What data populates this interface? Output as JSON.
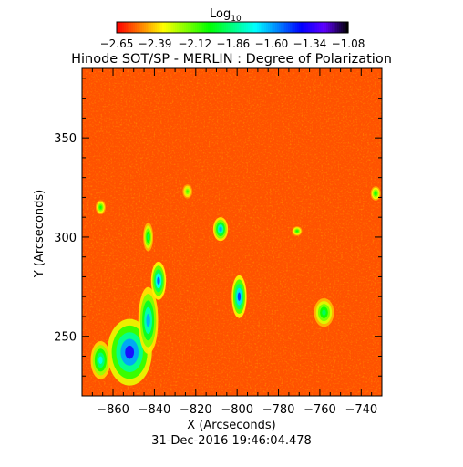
{
  "chart_data": {
    "type": "heatmap",
    "title": "Hinode SOT/SP - MERLIN : Degree of Polarization",
    "xlabel": "X (Arcseconds)",
    "ylabel": "Y (Arcseconds)",
    "timestamp": "31-Dec-2016 19:46:04.478",
    "xlim": [
      -875,
      -730
    ],
    "ylim": [
      220,
      385
    ],
    "x_ticks": [
      -860,
      -840,
      -820,
      -800,
      -780,
      -760,
      -740
    ],
    "y_ticks": [
      250,
      300,
      350
    ],
    "x_tick_labels": [
      "−860",
      "−840",
      "−820",
      "−800",
      "−780",
      "−760",
      "−740"
    ],
    "y_tick_labels": [
      "250",
      "300",
      "350"
    ],
    "colorbar": {
      "label_base": "Log",
      "label_sub": "10",
      "range": [
        -2.65,
        -1.08
      ],
      "ticks": [
        -2.65,
        -2.39,
        -2.12,
        -1.86,
        -1.6,
        -1.34,
        -1.08
      ],
      "tick_labels": [
        "−2.65",
        "−2.39",
        "−2.12",
        "−1.86",
        "−1.60",
        "−1.34",
        "−1.08"
      ],
      "colormap": [
        "#ff0000",
        "#ff8000",
        "#ffff00",
        "#80ff00",
        "#00ff00",
        "#00ff80",
        "#00ffff",
        "#0080ff",
        "#0000ff",
        "#6000ff",
        "#000000"
      ]
    },
    "background_level": -2.55,
    "regions": [
      {
        "x": -852,
        "y": 242,
        "rx": 9,
        "ry": 14,
        "level": -1.35
      },
      {
        "x": -866,
        "y": 238,
        "rx": 4,
        "ry": 8,
        "level": -1.7
      },
      {
        "x": -843,
        "y": 258,
        "rx": 4,
        "ry": 14,
        "level": -1.6
      },
      {
        "x": -838,
        "y": 278,
        "rx": 3,
        "ry": 8,
        "level": -1.5
      },
      {
        "x": -843,
        "y": 300,
        "rx": 2,
        "ry": 6,
        "level": -1.9
      },
      {
        "x": -799,
        "y": 270,
        "rx": 3,
        "ry": 9,
        "level": -1.45
      },
      {
        "x": -808,
        "y": 304,
        "rx": 3,
        "ry": 5,
        "level": -1.6
      },
      {
        "x": -758,
        "y": 262,
        "rx": 4,
        "ry": 6,
        "level": -1.9
      },
      {
        "x": -866,
        "y": 315,
        "rx": 2,
        "ry": 3,
        "level": -2.0
      },
      {
        "x": -733,
        "y": 322,
        "rx": 2,
        "ry": 3,
        "level": -2.0
      },
      {
        "x": -824,
        "y": 323,
        "rx": 2,
        "ry": 3,
        "level": -2.1
      },
      {
        "x": -771,
        "y": 303,
        "rx": 2,
        "ry": 2,
        "level": -2.0
      }
    ]
  }
}
